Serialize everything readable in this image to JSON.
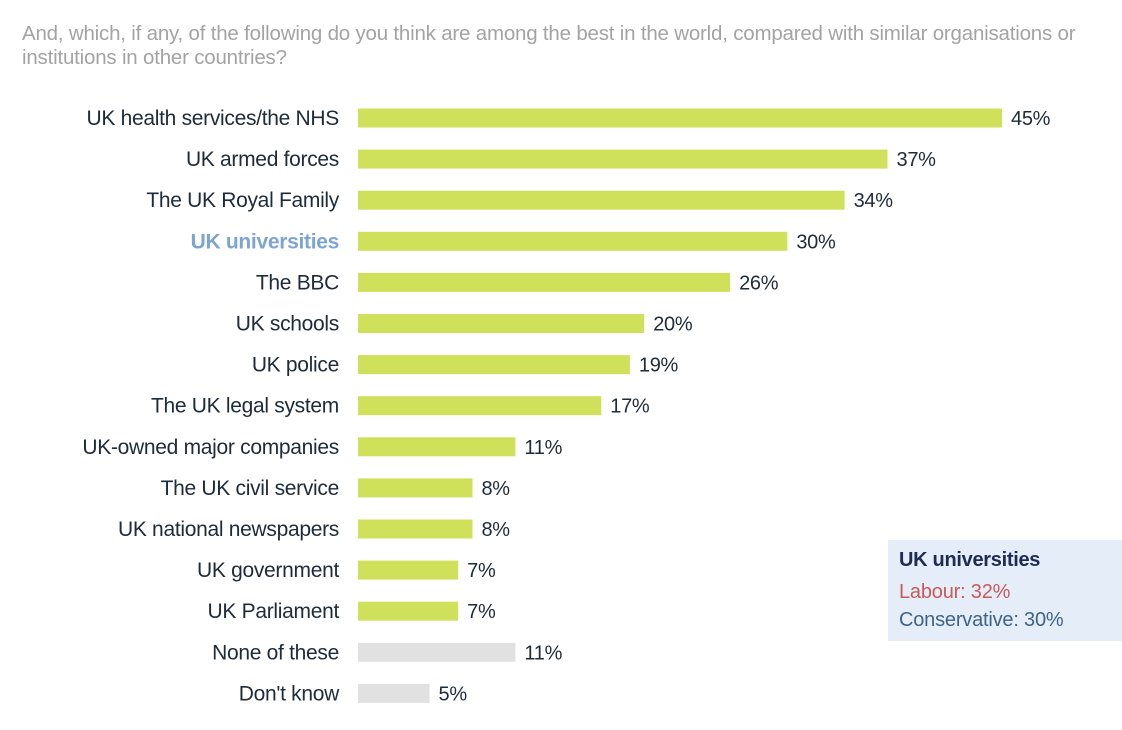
{
  "question": "And, which, if any, of the following do you think are among the best in the world, compared with similar organisations or institutions in other countries?",
  "chart_data": {
    "type": "bar",
    "orientation": "horizontal",
    "title": "And, which, if any, of the following do you think are among the best in the world, compared with similar organisations or institutions in other countries?",
    "categories": [
      "UK health services/the NHS",
      "UK armed forces",
      "The UK Royal Family",
      "UK universities",
      "The BBC",
      "UK schools",
      "UK police",
      "The UK legal system",
      "UK-owned major companies",
      "The UK civil service",
      "UK national newspapers",
      "UK government",
      "UK Parliament",
      "None of these",
      "Don't know"
    ],
    "values": [
      45,
      37,
      34,
      30,
      26,
      20,
      19,
      17,
      11,
      8,
      8,
      7,
      7,
      11,
      5
    ],
    "value_labels": [
      "45%",
      "37%",
      "34%",
      "30%",
      "26%",
      "20%",
      "19%",
      "17%",
      "11%",
      "8%",
      "8%",
      "7%",
      "7%",
      "11%",
      "5%"
    ],
    "highlight_category": "UK universities",
    "bar_colors": [
      "#cfe05a",
      "#cfe05a",
      "#cfe05a",
      "#cfe05a",
      "#cfe05a",
      "#cfe05a",
      "#cfe05a",
      "#cfe05a",
      "#cfe05a",
      "#cfe05a",
      "#cfe05a",
      "#cfe05a",
      "#cfe05a",
      "#e1e1e1",
      "#e1e1e1"
    ],
    "xlim": [
      0,
      45
    ],
    "xlabel": "",
    "ylabel": "",
    "grid": false
  },
  "callout": {
    "title": "UK universities",
    "labour": "Labour: 32%",
    "conservative": "Conservative: 30%"
  },
  "colors": {
    "accent_bar": "#cfe05a",
    "neutral_bar": "#e1e1e1",
    "highlight_text": "#7ca4d4",
    "labour": "#c85a5a",
    "conservative": "#3f6485",
    "callout_bg": "#e5eef8"
  }
}
